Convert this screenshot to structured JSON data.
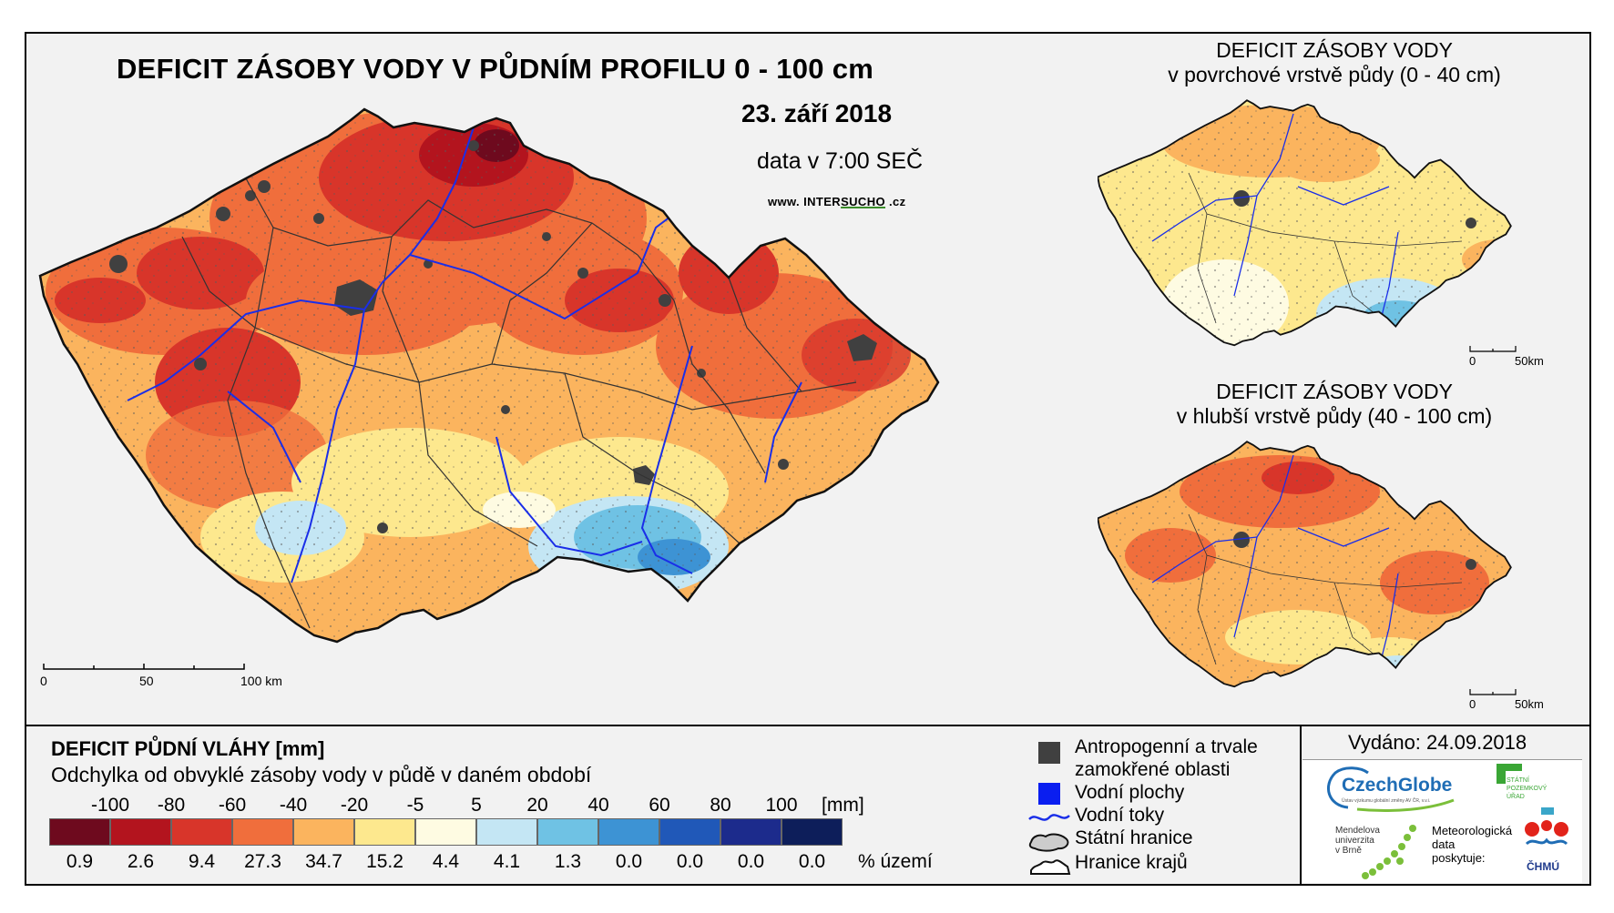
{
  "main_map": {
    "title": "DEFICIT ZÁSOBY VODY V PŮDNÍM PROFILU 0 - 100 cm",
    "date": "23. září 2018",
    "data_time": "data v 7:00 SEČ",
    "website_prefix": "www. INTER",
    "website_highlight": "SUCHO",
    "website_suffix": " .cz",
    "scale": {
      "labels": [
        "0",
        "50",
        "100 km"
      ]
    }
  },
  "inset_top": {
    "title_line1": "DEFICIT ZÁSOBY VODY",
    "title_line2": "v povrchové vrstvě půdy (0 - 40 cm)",
    "scale": {
      "labels": [
        "0",
        "50km"
      ]
    }
  },
  "inset_bottom": {
    "title_line1": "DEFICIT ZÁSOBY VODY",
    "title_line2": "v hlubší vrstvě půdy (40 - 100 cm)",
    "scale": {
      "labels": [
        "0",
        "50km"
      ]
    }
  },
  "legend": {
    "title": "DEFICIT PŮDNÍ VLÁHY [mm]",
    "subtitle": "Odchylka od obvyklé zásoby vody v půdě v daném období",
    "ticks": [
      "-100",
      "-80",
      "-60",
      "-40",
      "-20",
      "-5",
      "5",
      "20",
      "40",
      "60",
      "80",
      "100"
    ],
    "unit": "[mm]",
    "classes": [
      {
        "color": "#6e0a1e",
        "percent": "0.9"
      },
      {
        "color": "#b3141e",
        "percent": "2.6"
      },
      {
        "color": "#d8352a",
        "percent": "9.4"
      },
      {
        "color": "#f06e3c",
        "percent": "27.3"
      },
      {
        "color": "#fbb45e",
        "percent": "34.7"
      },
      {
        "color": "#fde88e",
        "percent": "15.2"
      },
      {
        "color": "#fefbe2",
        "percent": "4.4"
      },
      {
        "color": "#c4e6f4",
        "percent": "4.1"
      },
      {
        "color": "#6fc2e4",
        "percent": "1.3"
      },
      {
        "color": "#3d93d4",
        "percent": "0.0"
      },
      {
        "color": "#2058b8",
        "percent": "0.0"
      },
      {
        "color": "#1c2b8c",
        "percent": "0.0"
      },
      {
        "color": "#0d1e5a",
        "percent": "0.0"
      }
    ],
    "percent_unit": "% území"
  },
  "symbols": {
    "urban_line1": "Antropogenní a trvale",
    "urban_line2": "zamokřené oblasti",
    "water_bodies": "Vodní plochy",
    "rivers": "Vodní toky",
    "state_border": "Státní hranice",
    "region_border": "Hranice krajů",
    "urban_color": "#404040",
    "water_color": "#0a1ef0",
    "river_color": "#1a2ee8"
  },
  "issued": "Vydáno: 24.09.2018",
  "logos": {
    "czechglobe": "CzechGlobe",
    "czechglobe_sub": "Ústav výzkumu globální změny AV ČR, v.v.i.",
    "spu_line1": "STÁTNÍ",
    "spu_line2": "POZEMKOVÝ",
    "spu_line3": "ÚŘAD",
    "mendel_line1": "Mendelova",
    "mendel_line2": "univerzita",
    "mendel_line3": "v Brně",
    "meteo_line1": "Meteorologická",
    "meteo_line2": "data",
    "meteo_line3": "poskytuje:",
    "chmu": "ČHMÚ"
  }
}
